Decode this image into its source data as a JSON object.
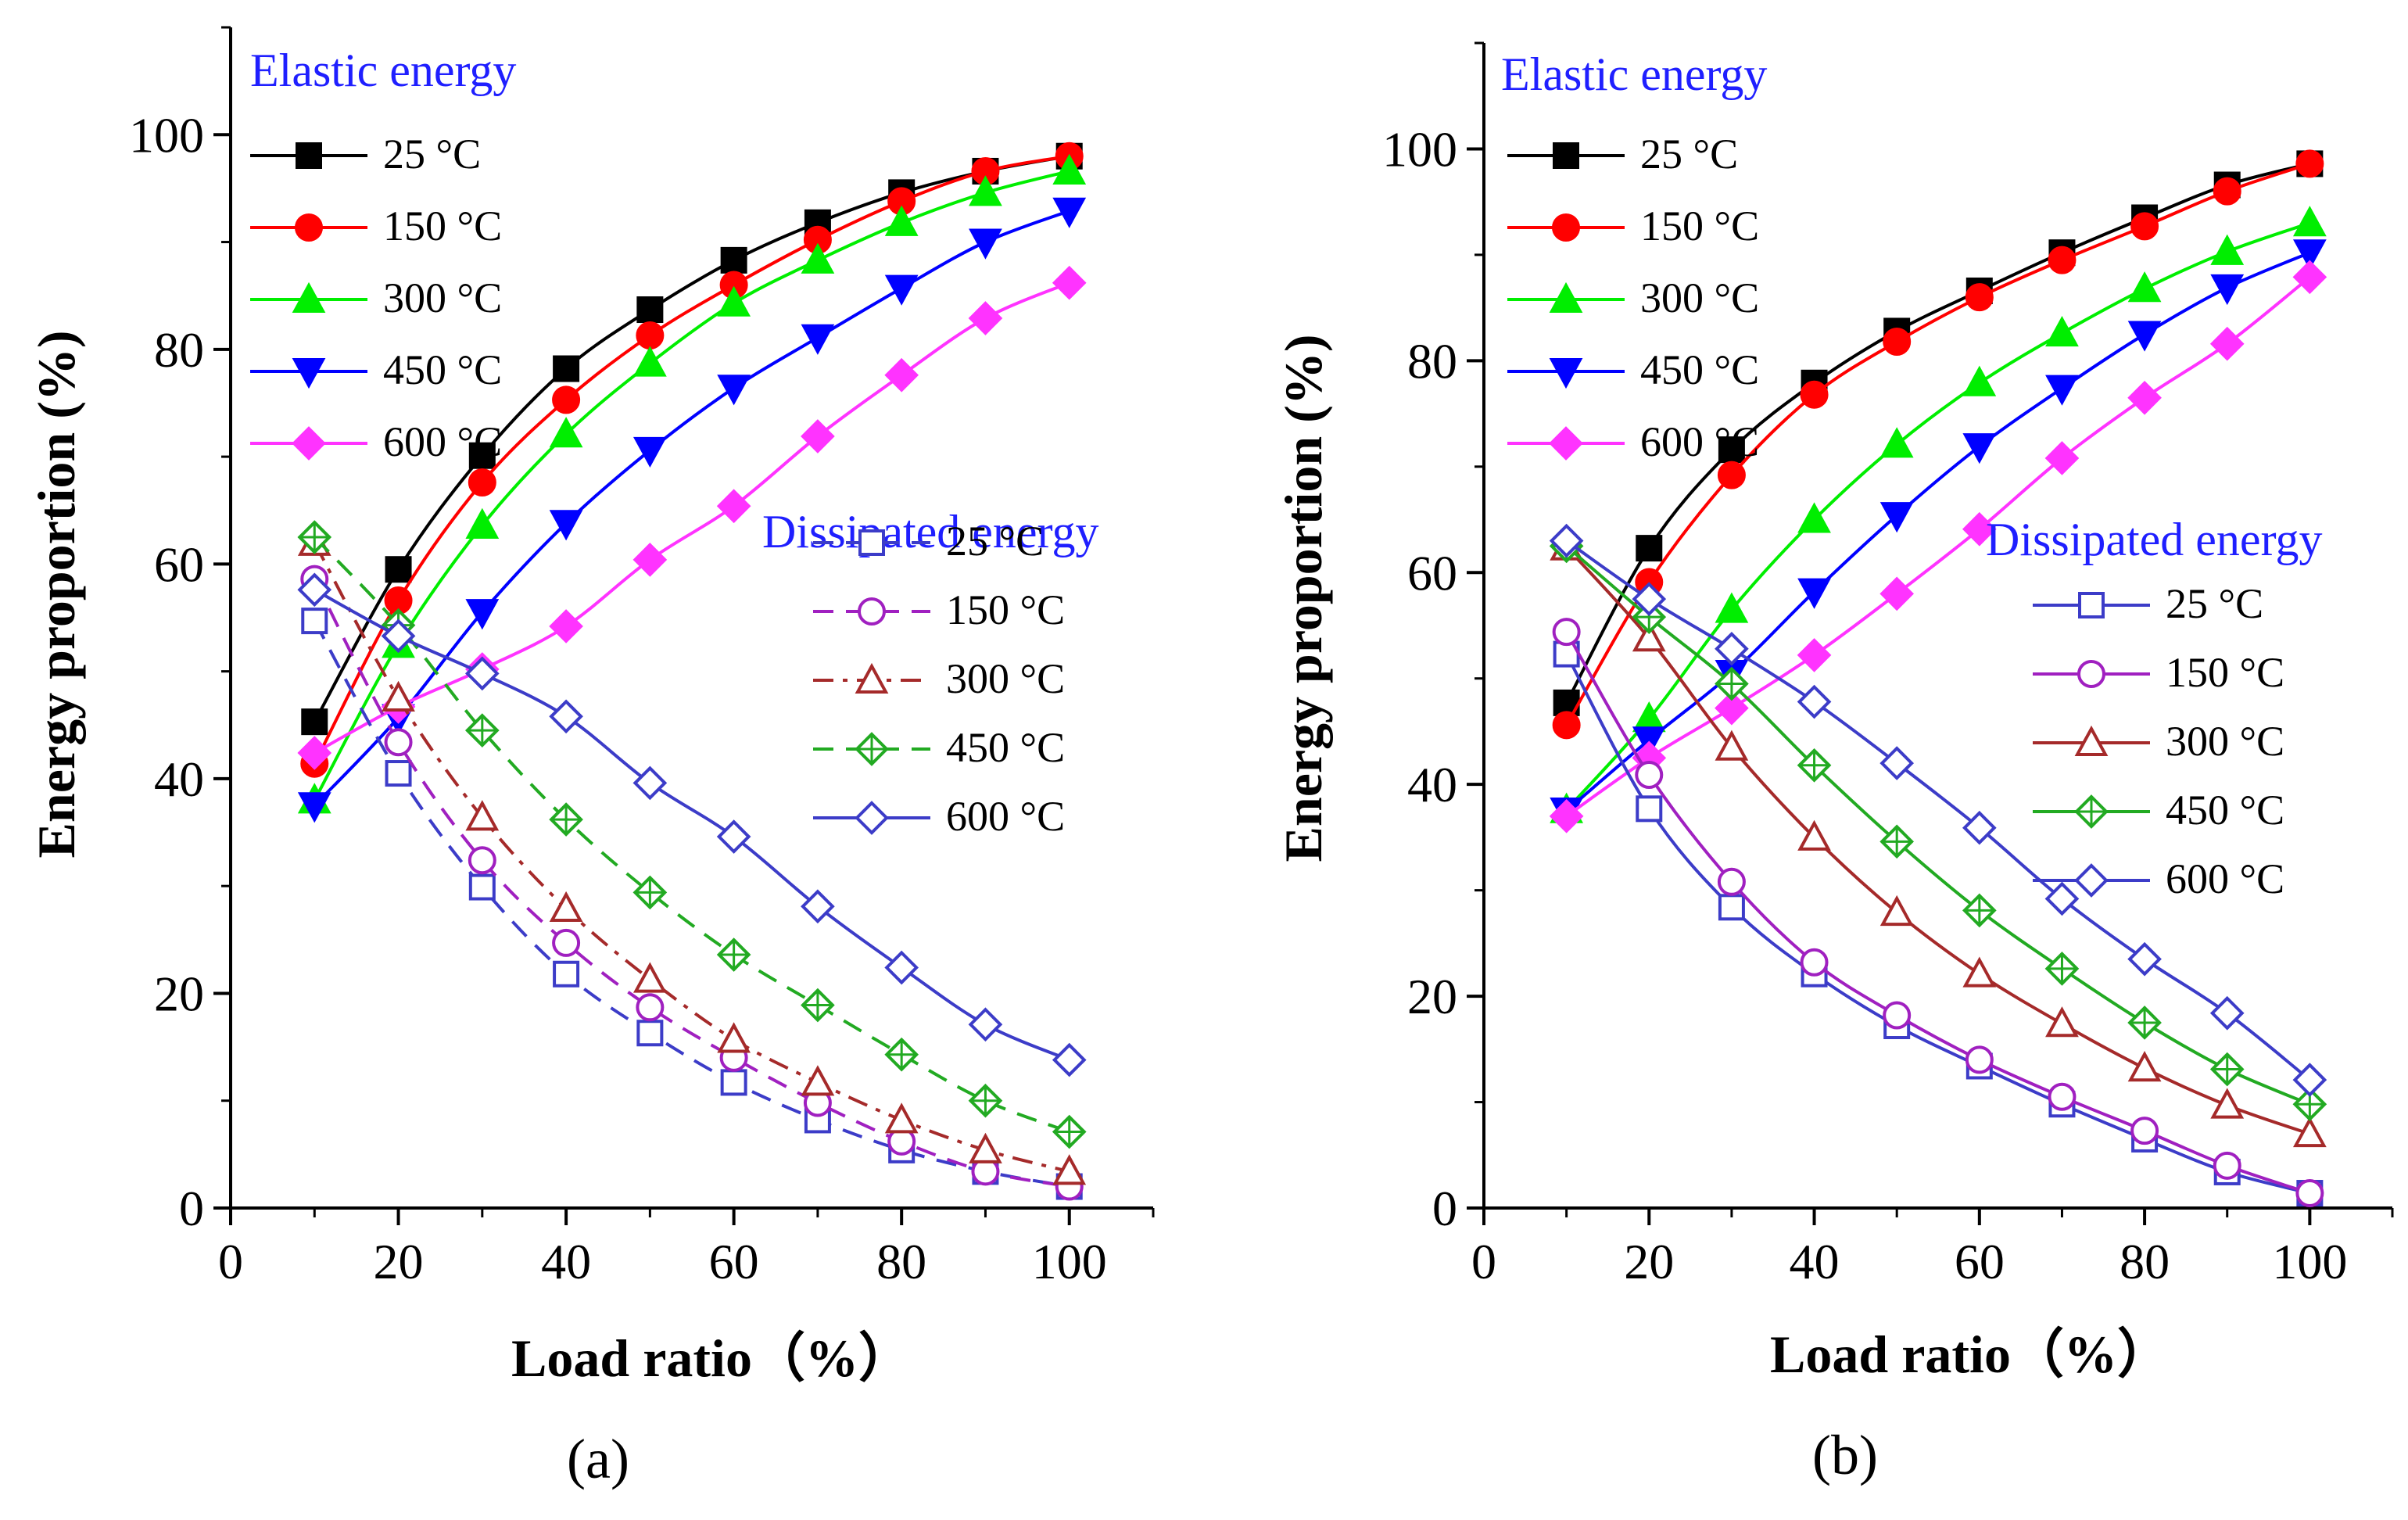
{
  "figure": {
    "panel_labels": [
      "(a)",
      "(b)"
    ]
  },
  "chart_data": [
    {
      "type": "line",
      "panel": "(a)",
      "xlabel": "Load ratio（%）",
      "ylabel": "Energy proportion (%)",
      "xlim": [
        0,
        110
      ],
      "ylim": [
        0,
        110
      ],
      "xticks": [
        "0",
        "20",
        "40",
        "60",
        "80",
        "100"
      ],
      "yticks": [
        "0",
        "20",
        "40",
        "60",
        "80",
        "100"
      ],
      "x": [
        10,
        20,
        30,
        40,
        50,
        60,
        70,
        80,
        90,
        100
      ],
      "groups": [
        {
          "title": "Elastic energy",
          "series": [
            {
              "name": "25 °C",
              "color": "#000000",
              "marker": "square",
              "filled": true,
              "dash": "solid",
              "values": [
                45.3,
                59.5,
                70.1,
                78.2,
                83.7,
                88.3,
                91.8,
                94.6,
                96.6,
                98.0
              ]
            },
            {
              "name": "150 °C",
              "color": "#ff0000",
              "marker": "circle",
              "filled": true,
              "dash": "solid",
              "values": [
                41.4,
                56.6,
                67.6,
                75.3,
                81.3,
                86.0,
                90.2,
                93.8,
                96.6,
                98.0
              ]
            },
            {
              "name": "300 °C",
              "color": "#00ee00",
              "marker": "triangle-up",
              "filled": true,
              "dash": "solid",
              "values": [
                38.0,
                52.5,
                63.6,
                72.1,
                78.7,
                84.3,
                88.3,
                91.8,
                94.6,
                96.6
              ]
            },
            {
              "name": "450 °C",
              "color": "#0000ff",
              "marker": "triangle-down",
              "filled": true,
              "dash": "solid",
              "values": [
                37.5,
                45.7,
                55.5,
                63.8,
                70.6,
                76.4,
                81.1,
                85.7,
                90.0,
                92.9
              ]
            },
            {
              "name": "600 °C",
              "color": "#ff33ff",
              "marker": "diamond",
              "filled": true,
              "dash": "solid",
              "values": [
                42.4,
                46.7,
                50.2,
                54.2,
                60.4,
                65.4,
                71.9,
                77.6,
                82.9,
                86.2
              ]
            }
          ]
        },
        {
          "title": "Dissipated energy",
          "series": [
            {
              "name": "25 °C",
              "color": "#3c3cc8",
              "marker": "square",
              "filled": false,
              "dash": "dashed",
              "values": [
                54.7,
                40.5,
                29.9,
                21.8,
                16.3,
                11.7,
                8.2,
                5.4,
                3.4,
                2.0
              ]
            },
            {
              "name": "150 °C",
              "color": "#a020c0",
              "marker": "circle",
              "filled": false,
              "dash": "dashed",
              "values": [
                58.6,
                43.4,
                32.4,
                24.7,
                18.7,
                14.0,
                9.8,
                6.2,
                3.4,
                2.0
              ]
            },
            {
              "name": "300 °C",
              "color": "#a52a2a",
              "marker": "triangle-up",
              "filled": false,
              "dash": "dashdot",
              "values": [
                62.0,
                47.5,
                36.4,
                27.9,
                21.3,
                15.7,
                11.7,
                8.2,
                5.4,
                3.4
              ]
            },
            {
              "name": "450 °C",
              "color": "#22aa22",
              "marker": "crossed-diamond",
              "filled": false,
              "dash": "dashed",
              "values": [
                62.5,
                54.3,
                44.5,
                36.2,
                29.4,
                23.6,
                18.9,
                14.3,
                10.0,
                7.1
              ]
            },
            {
              "name": "600 °C",
              "color": "#3c3cc8",
              "marker": "diamond",
              "filled": false,
              "dash": "solid",
              "values": [
                57.6,
                53.3,
                49.8,
                45.8,
                39.6,
                34.6,
                28.1,
                22.4,
                17.1,
                13.8
              ]
            }
          ]
        }
      ]
    },
    {
      "type": "line",
      "panel": "(b)",
      "xlabel": "Load ratio（%）",
      "ylabel": "Energy proportion (%)",
      "xlim": [
        0,
        110
      ],
      "ylim": [
        0,
        110
      ],
      "xticks": [
        "0",
        "20",
        "40",
        "60",
        "80",
        "100"
      ],
      "yticks": [
        "0",
        "20",
        "40",
        "60",
        "80",
        "100"
      ],
      "x": [
        10,
        20,
        30,
        40,
        50,
        60,
        70,
        80,
        90,
        100
      ],
      "groups": [
        {
          "title": "Elastic energy",
          "series": [
            {
              "name": "25 °C",
              "color": "#000000",
              "marker": "square",
              "filled": true,
              "dash": "solid",
              "values": [
                47.7,
                62.3,
                71.6,
                77.9,
                82.8,
                86.6,
                90.2,
                93.5,
                96.6,
                98.6
              ]
            },
            {
              "name": "150 °C",
              "color": "#ff0000",
              "marker": "circle",
              "filled": true,
              "dash": "solid",
              "values": [
                45.6,
                59.1,
                69.2,
                76.8,
                81.8,
                86.0,
                89.5,
                92.7,
                96.0,
                98.6
              ]
            },
            {
              "name": "300 °C",
              "color": "#00ee00",
              "marker": "triangle-up",
              "filled": true,
              "dash": "solid",
              "values": [
                37.6,
                46.2,
                56.5,
                65.0,
                72.1,
                77.9,
                82.6,
                86.8,
                90.3,
                93.0
              ]
            },
            {
              "name": "450 °C",
              "color": "#0000ff",
              "marker": "triangle-down",
              "filled": true,
              "dash": "solid",
              "values": [
                37.5,
                44.2,
                50.5,
                58.2,
                65.4,
                71.9,
                77.4,
                82.5,
                86.9,
                90.2
              ]
            },
            {
              "name": "600 °C",
              "color": "#ff33ff",
              "marker": "diamond",
              "filled": true,
              "dash": "solid",
              "values": [
                37.0,
                42.5,
                47.2,
                52.2,
                58.0,
                64.1,
                70.8,
                76.5,
                81.6,
                87.9
              ]
            }
          ]
        },
        {
          "title": "Dissipated energy",
          "series": [
            {
              "name": "25 °C",
              "color": "#3c3cc8",
              "marker": "square",
              "filled": false,
              "dash": "solid",
              "values": [
                52.3,
                37.7,
                28.4,
                22.1,
                17.2,
                13.4,
                9.8,
                6.5,
                3.4,
                1.4
              ]
            },
            {
              "name": "150 °C",
              "color": "#a020c0",
              "marker": "circle",
              "filled": false,
              "dash": "solid",
              "values": [
                54.4,
                40.9,
                30.8,
                23.2,
                18.2,
                14.0,
                10.5,
                7.3,
                4.0,
                1.4
              ]
            },
            {
              "name": "300 °C",
              "color": "#a52a2a",
              "marker": "triangle-up",
              "filled": false,
              "dash": "solid",
              "values": [
                62.4,
                53.8,
                43.5,
                35.0,
                27.9,
                22.1,
                17.4,
                13.2,
                9.7,
                7.0
              ]
            },
            {
              "name": "450 °C",
              "color": "#22aa22",
              "marker": "crossed-diamond",
              "filled": false,
              "dash": "solid",
              "values": [
                62.5,
                55.8,
                49.5,
                41.8,
                34.6,
                28.1,
                22.6,
                17.5,
                13.1,
                9.8
              ]
            },
            {
              "name": "600 °C",
              "color": "#3c3cc8",
              "marker": "diamond",
              "filled": false,
              "dash": "solid",
              "values": [
                63.0,
                57.5,
                52.8,
                47.8,
                42.0,
                35.9,
                29.2,
                23.5,
                18.4,
                12.1
              ]
            }
          ]
        }
      ]
    }
  ]
}
